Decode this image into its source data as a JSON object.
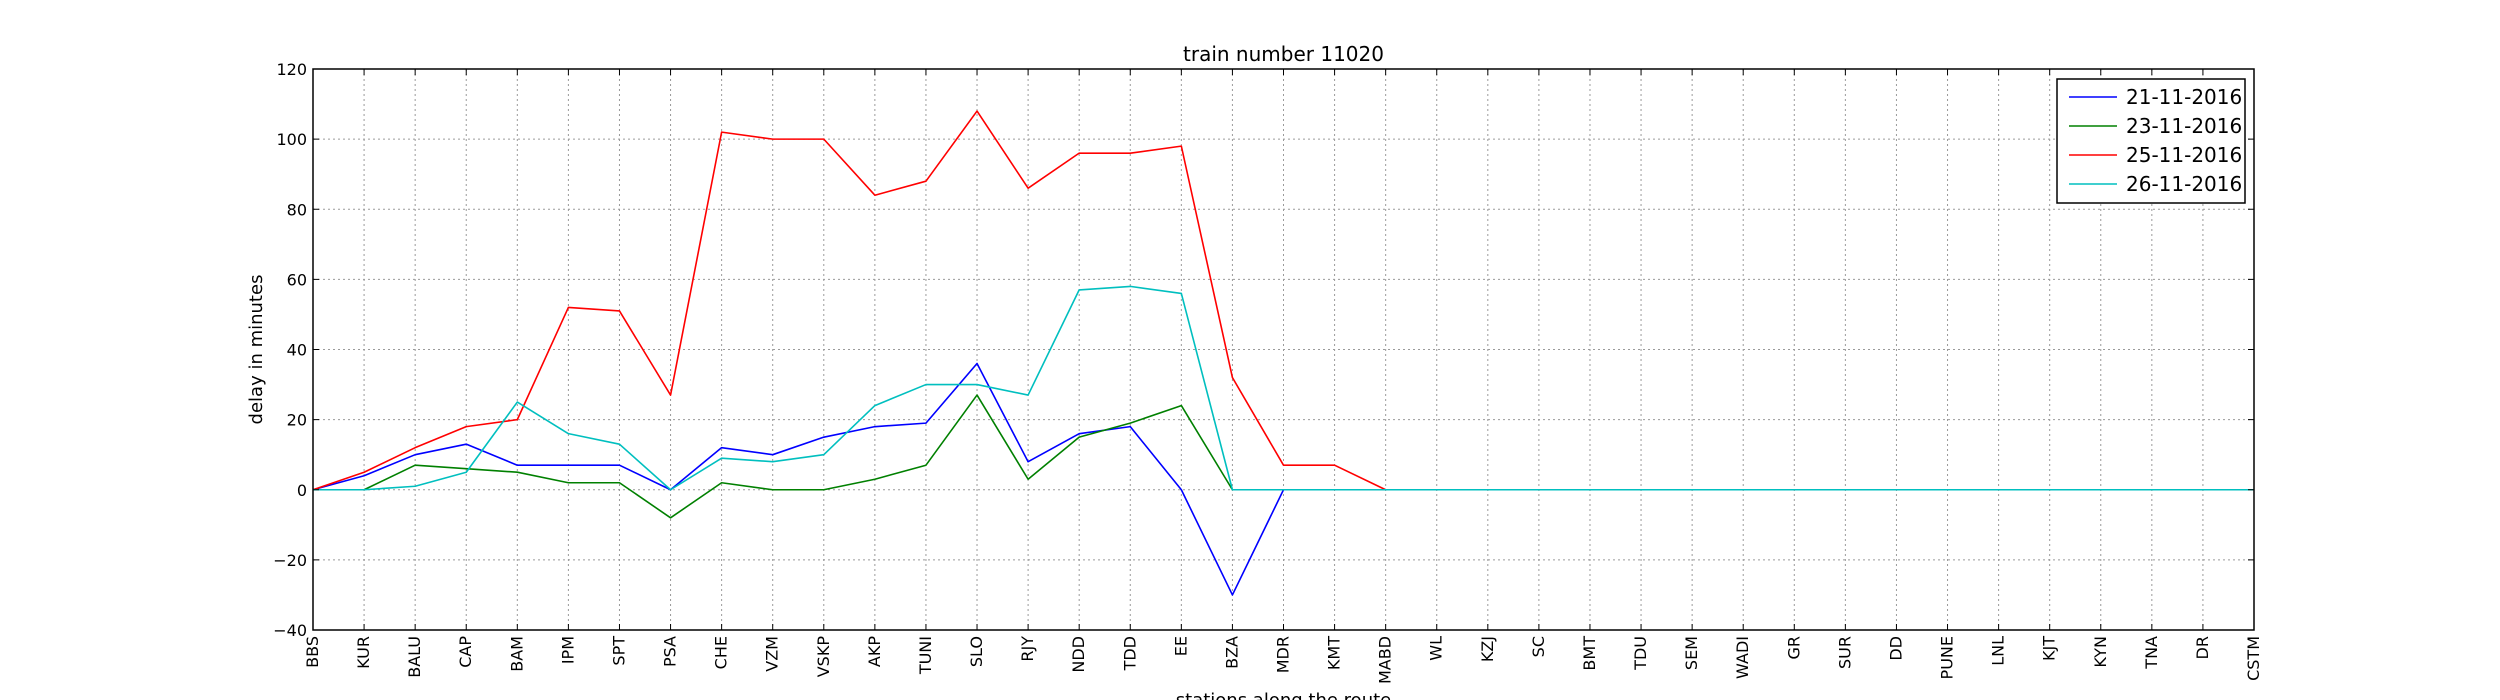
{
  "chart_data": {
    "type": "line",
    "title": "train number 11020",
    "xlabel": "stations along the route",
    "ylabel": "delay in minutes",
    "ylim": [
      -40,
      120
    ],
    "yticks": [
      -40,
      -20,
      0,
      20,
      40,
      60,
      80,
      100,
      120
    ],
    "ytick_labels": [
      "−40",
      "−20",
      "0",
      "20",
      "40",
      "60",
      "80",
      "100",
      "120"
    ],
    "grid": true,
    "legend_position": "top-right",
    "categories": [
      "BBS",
      "KUR",
      "BALU",
      "CAP",
      "BAM",
      "IPM",
      "SPT",
      "PSA",
      "CHE",
      "VZM",
      "VSKP",
      "AKP",
      "TUNI",
      "SLO",
      "RJY",
      "NDD",
      "TDD",
      "EE",
      "BZA",
      "MDR",
      "KMT",
      "MABD",
      "WL",
      "KZJ",
      "SC",
      "BMT",
      "TDU",
      "SEM",
      "WADI",
      "GR",
      "SUR",
      "DD",
      "PUNE",
      "LNL",
      "KJT",
      "KYN",
      "TNA",
      "DR",
      "CSTM"
    ],
    "series": [
      {
        "name": "21-11-2016",
        "color": "#0000ff",
        "values": [
          0,
          4,
          10,
          13,
          7,
          7,
          7,
          0,
          12,
          10,
          15,
          18,
          19,
          36,
          8,
          16,
          18,
          0,
          -30,
          0,
          0,
          0,
          0,
          0,
          0,
          0,
          0,
          0,
          0,
          0,
          0,
          0,
          0,
          0,
          0,
          0,
          0,
          0,
          0
        ]
      },
      {
        "name": "23-11-2016",
        "color": "#008000",
        "values": [
          0,
          0,
          7,
          6,
          5,
          2,
          2,
          -8,
          2,
          0,
          0,
          3,
          7,
          27,
          3,
          15,
          19,
          24,
          0,
          0,
          0,
          0,
          0,
          0,
          0,
          0,
          0,
          0,
          0,
          0,
          0,
          0,
          0,
          0,
          0,
          0,
          0,
          0,
          0
        ]
      },
      {
        "name": "25-11-2016",
        "color": "#ff0000",
        "values": [
          0,
          5,
          12,
          18,
          20,
          52,
          51,
          27,
          102,
          100,
          100,
          84,
          88,
          108,
          86,
          96,
          96,
          98,
          32,
          7,
          7,
          0,
          0,
          0,
          0,
          0,
          0,
          0,
          0,
          0,
          0,
          0,
          0,
          0,
          0,
          0,
          0,
          0,
          0
        ]
      },
      {
        "name": "26-11-2016",
        "color": "#00bfbf",
        "values": [
          0,
          0,
          1,
          5,
          25,
          16,
          13,
          0,
          9,
          8,
          10,
          24,
          30,
          30,
          27,
          57,
          58,
          56,
          0,
          0,
          0,
          0,
          0,
          0,
          0,
          0,
          0,
          0,
          0,
          0,
          0,
          0,
          0,
          0,
          0,
          0,
          0,
          0,
          0
        ]
      }
    ]
  }
}
